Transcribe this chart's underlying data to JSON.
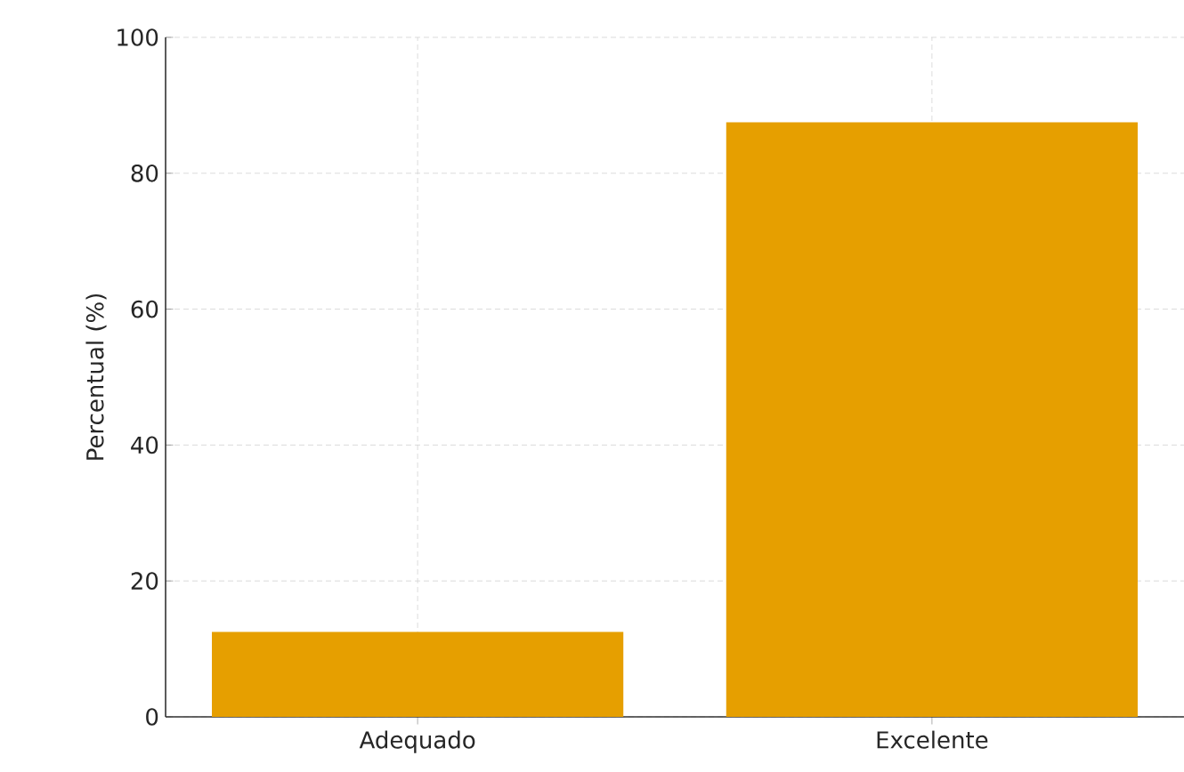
{
  "chart_data": {
    "type": "bar",
    "ylabel": "Percentual (%)",
    "categories": [
      "Adequado",
      "Excelente"
    ],
    "values": [
      12.5,
      87.5
    ],
    "color": "#e69f00",
    "ylim": [
      0,
      100
    ],
    "yticks": [
      0,
      20,
      40,
      60,
      80,
      100
    ],
    "grid": true
  }
}
